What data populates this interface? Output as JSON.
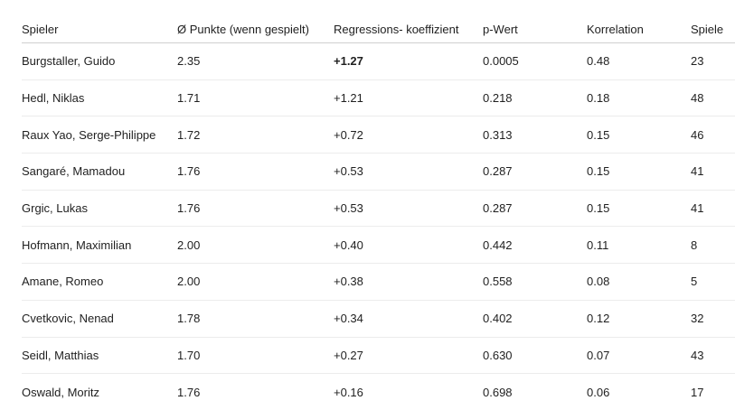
{
  "table": {
    "headers": {
      "spieler": "Spieler",
      "punkte": "Ø Punkte (wenn gespielt)",
      "regression": "Regressions- koeffizient",
      "pwert": "p-Wert",
      "korrelation": "Korrelation",
      "spiele": "Spiele"
    },
    "rows": [
      {
        "spieler": "Burgstaller, Guido",
        "punkte": "2.35",
        "regression": "+1.27",
        "pwert": "0.0005",
        "korrelation": "0.48",
        "spiele": "23"
      },
      {
        "spieler": "Hedl, Niklas",
        "punkte": "1.71",
        "regression": "+1.21",
        "pwert": "0.218",
        "korrelation": "0.18",
        "spiele": "48"
      },
      {
        "spieler": "Raux Yao, Serge-Philippe",
        "punkte": "1.72",
        "regression": "+0.72",
        "pwert": "0.313",
        "korrelation": "0.15",
        "spiele": "46"
      },
      {
        "spieler": "Sangaré, Mamadou",
        "punkte": "1.76",
        "regression": "+0.53",
        "pwert": "0.287",
        "korrelation": "0.15",
        "spiele": "41"
      },
      {
        "spieler": "Grgic, Lukas",
        "punkte": "1.76",
        "regression": "+0.53",
        "pwert": "0.287",
        "korrelation": "0.15",
        "spiele": "41"
      },
      {
        "spieler": "Hofmann, Maximilian",
        "punkte": "2.00",
        "regression": "+0.40",
        "pwert": "0.442",
        "korrelation": "0.11",
        "spiele": "8"
      },
      {
        "spieler": "Amane, Romeo",
        "punkte": "2.00",
        "regression": "+0.38",
        "pwert": "0.558",
        "korrelation": "0.08",
        "spiele": "5"
      },
      {
        "spieler": "Cvetkovic, Nenad",
        "punkte": "1.78",
        "regression": "+0.34",
        "pwert": "0.402",
        "korrelation": "0.12",
        "spiele": "32"
      },
      {
        "spieler": "Seidl, Matthias",
        "punkte": "1.70",
        "regression": "+0.27",
        "pwert": "0.630",
        "korrelation": "0.07",
        "spiele": "43"
      },
      {
        "spieler": "Oswald, Moritz",
        "punkte": "1.76",
        "regression": "+0.16",
        "pwert": "0.698",
        "korrelation": "0.06",
        "spiele": "17"
      }
    ]
  }
}
